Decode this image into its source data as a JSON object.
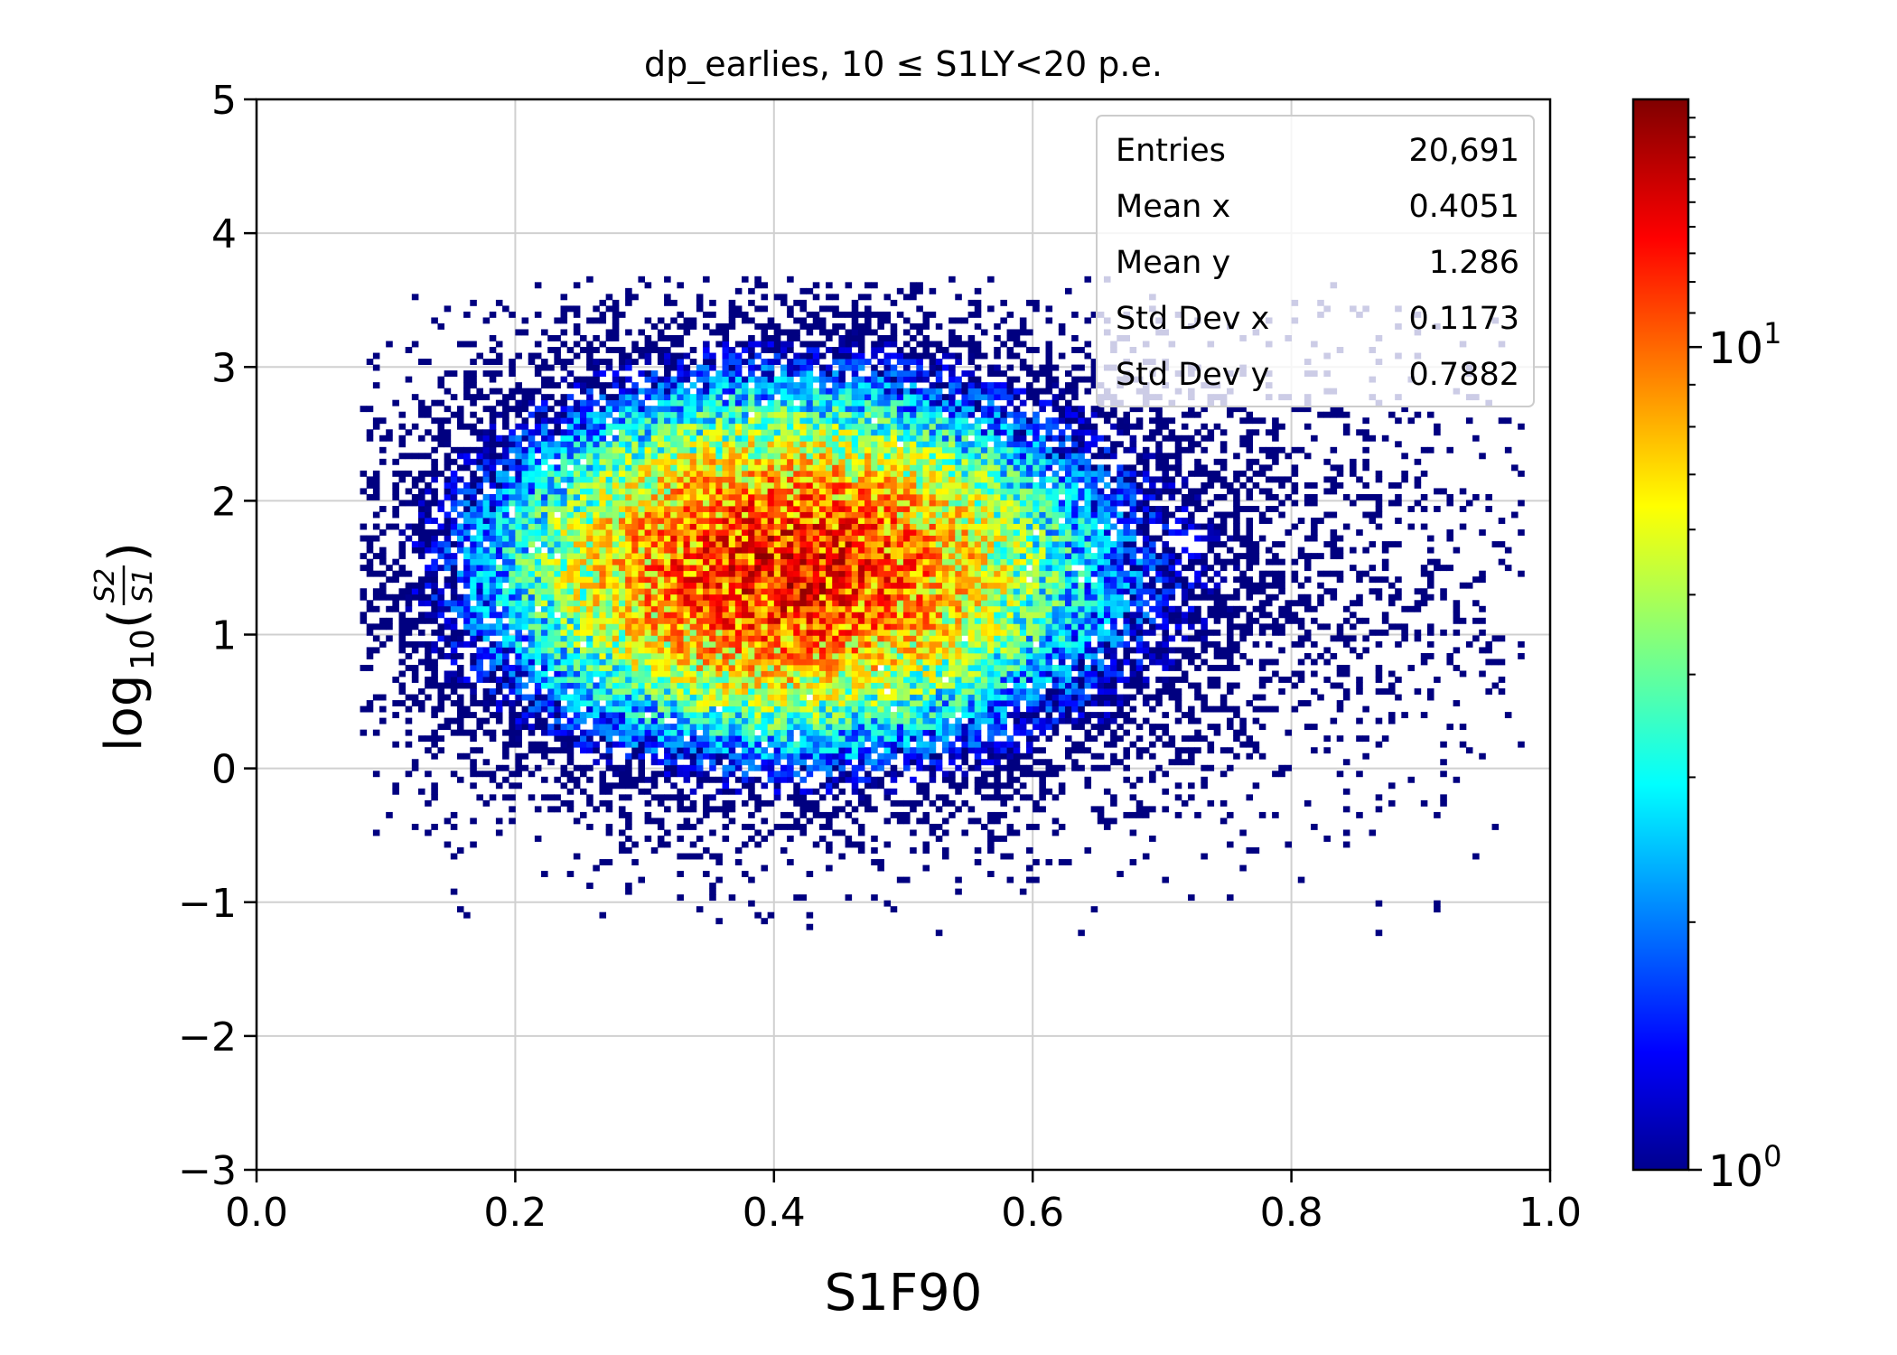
{
  "chart_data": {
    "type": "heatmap",
    "title": "dp_earlies, 10 ≤ S1LY<20 p.e.",
    "xlabel": "S1F90",
    "ylabel": {
      "prefix": "log",
      "subscript": "10",
      "numerator": "S2",
      "denominator": "S1",
      "open_paren": "(",
      "close_paren": ")"
    },
    "xlim": [
      0.0,
      1.0
    ],
    "ylim": [
      -3,
      5
    ],
    "x_ticks": [
      "0.0",
      "0.2",
      "0.4",
      "0.6",
      "0.8",
      "1.0"
    ],
    "y_ticks": [
      "−3",
      "−2",
      "−1",
      "0",
      "1",
      "2",
      "3",
      "4",
      "5"
    ],
    "grid": true,
    "colormap": "jet",
    "color_scale": "log",
    "colorbar_range": [
      1,
      20
    ],
    "colorbar_ticks": [
      {
        "base": "10",
        "exp": "0"
      },
      {
        "base": "10",
        "exp": "1"
      }
    ],
    "distribution": {
      "center_x": 0.4051,
      "center_y": 1.286,
      "std_x": 0.1173,
      "std_y": 0.7882,
      "peak_count": 14
    },
    "stats_box": {
      "placement": "top-right",
      "rows": [
        {
          "label": "Entries",
          "value": "20,691"
        },
        {
          "label": "Mean x",
          "value": "0.4051"
        },
        {
          "label": "Mean y",
          "value": "1.286"
        },
        {
          "label": "Std Dev x",
          "value": "0.1173"
        },
        {
          "label": "Std Dev y",
          "value": "0.7882"
        }
      ]
    }
  }
}
